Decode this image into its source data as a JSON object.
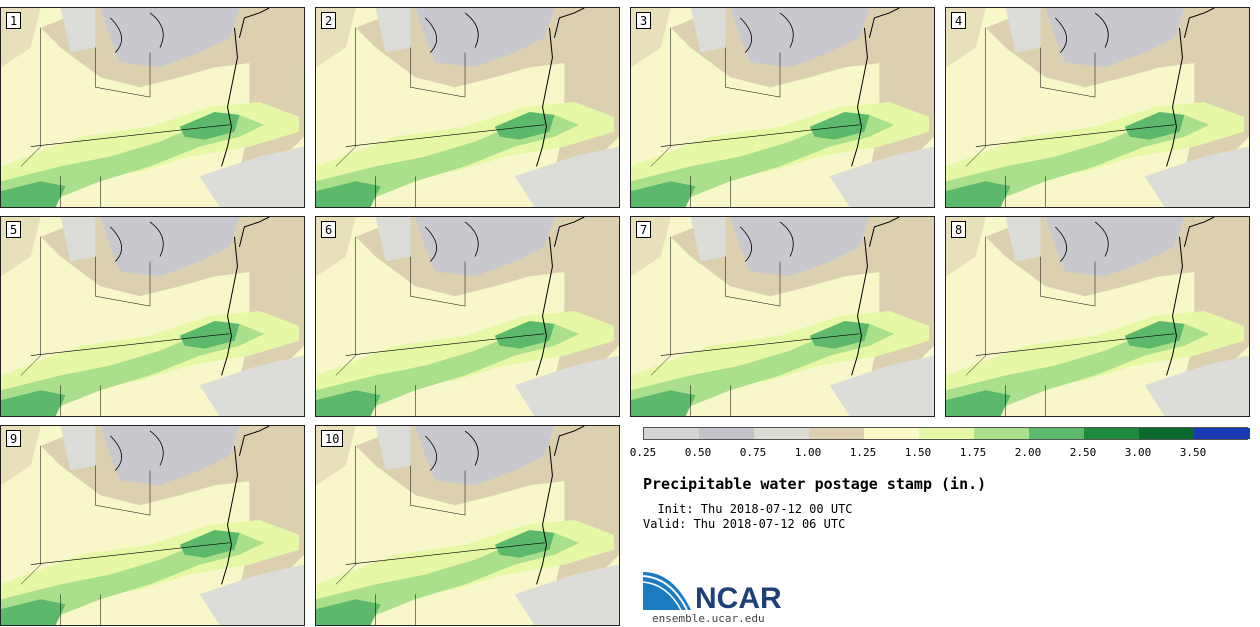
{
  "panels": [
    {
      "label": "1"
    },
    {
      "label": "2"
    },
    {
      "label": "3"
    },
    {
      "label": "4"
    },
    {
      "label": "5"
    },
    {
      "label": "6"
    },
    {
      "label": "7"
    },
    {
      "label": "8"
    },
    {
      "label": "9"
    },
    {
      "label": "10"
    }
  ],
  "legend": {
    "ticks": [
      "0.25",
      "0.50",
      "0.75",
      "1.00",
      "1.25",
      "1.50",
      "1.75",
      "2.00",
      "2.50",
      "3.00",
      "3.50"
    ],
    "colors": [
      "#d4d4d4",
      "#c2c2c8",
      "#dcdcd4",
      "#ddd0b0",
      "#fafac8",
      "#e6f7a6",
      "#aadf8c",
      "#5cb86a",
      "#1e8a3e",
      "#0a6a2e",
      "#1a3ab4"
    ]
  },
  "map_colors": {
    "base": "#f7f7c9",
    "tan": "#ddd0b0",
    "gray": "#c8c8ce",
    "lightgray": "#dcdcd8",
    "lime": "#e6f7a6",
    "green": "#aadf8c",
    "midgreen": "#5cb86a",
    "darkgreen": "#1e8a3e"
  },
  "title": "Precipitable water postage stamp (in.)",
  "init_text": "  Init: Thu 2018-07-12 00 UTC",
  "valid_text": "Valid: Thu 2018-07-12 06 UTC",
  "logo_text": "NCAR",
  "site_text": "ensemble.ucar.edu"
}
